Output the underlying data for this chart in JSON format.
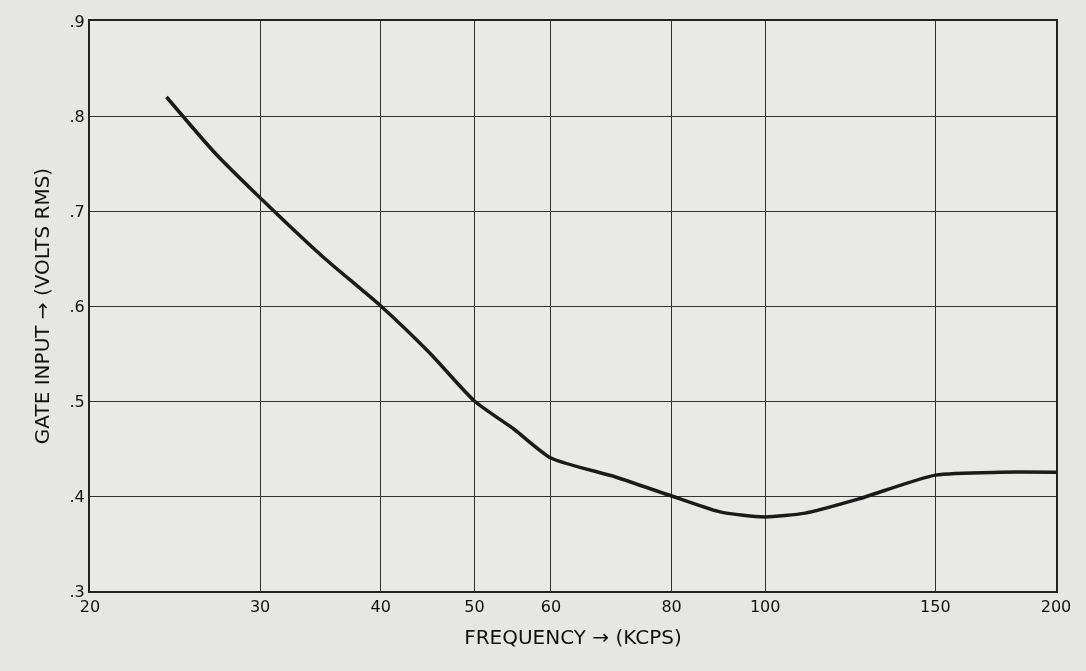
{
  "chart_data": {
    "type": "line",
    "xlabel": "FREQUENCY → (KCPS)",
    "ylabel": "GATE INPUT → (VOLTS RMS)",
    "x": [
      24,
      27,
      31,
      35,
      40,
      45,
      50,
      55,
      60,
      70,
      80,
      90,
      100,
      110,
      125,
      150,
      175,
      200
    ],
    "series": [
      {
        "color": "#1a1a1a",
        "values": [
          0.82,
          0.76,
          0.7,
          0.65,
          0.6,
          0.55,
          0.5,
          0.47,
          0.44,
          0.42,
          0.4,
          0.383,
          0.378,
          0.382,
          0.397,
          0.422,
          0.425,
          0.425
        ]
      }
    ],
    "log": "x",
    "xlim": [
      20,
      200
    ],
    "xticks": [
      20,
      30,
      40,
      50,
      60,
      80,
      100,
      150,
      200
    ],
    "ylim": [
      0.3,
      0.9
    ],
    "yticks": [
      {
        "value": 0.3,
        "label": ".3"
      },
      {
        "value": 0.4,
        "label": ".4"
      },
      {
        "value": 0.5,
        "label": ".5"
      },
      {
        "value": 0.6,
        "label": ".6"
      },
      {
        "value": 0.7,
        "label": ".7"
      },
      {
        "value": 0.8,
        "label": ".8"
      },
      {
        "value": 0.9,
        "label": ".9"
      }
    ],
    "grid": true,
    "marker": "none",
    "line_style": "solid"
  }
}
